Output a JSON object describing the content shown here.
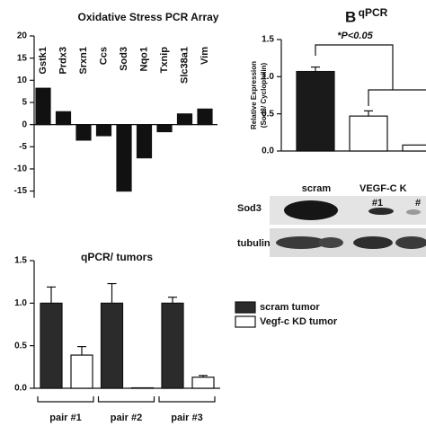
{
  "chart_data": [
    {
      "type": "bar",
      "title": "Oxidative Stress PCR Array",
      "categories": [
        "Gstk1",
        "Prdx3",
        "Srxn1",
        "Ccs",
        "Sod3",
        "Nqo1",
        "Txnip",
        "Slc38a1",
        "Vim"
      ],
      "values": [
        8.2,
        2.9,
        -3.5,
        -2.5,
        -15,
        -7.5,
        -1.6,
        2.4,
        3.5
      ],
      "color": "#111111",
      "ylim": [
        -16.5,
        20
      ],
      "yticks": [
        20,
        15,
        10,
        5,
        0,
        -5,
        -10,
        -15
      ]
    },
    {
      "type": "bar",
      "title": "qPCR",
      "panel_label": "B",
      "ylabel": [
        "Relative Expression",
        "(Sod3/ Cyclophilin)"
      ],
      "annotation": "*P<0.05",
      "values": [
        1.07,
        0.47,
        0.08
      ],
      "errors": [
        0.06,
        0.07,
        null
      ],
      "colors": [
        "#1a1a1a",
        "#ffffff",
        "#ffffff"
      ],
      "ylim": [
        0,
        1.5
      ],
      "yticks": [
        {
          "value": 0,
          "label": "0.0"
        },
        0.5,
        {
          "value": 1,
          "label": "1.0"
        },
        1.5
      ]
    },
    {
      "type": "bar",
      "title": "qPCR/ tumors",
      "categories": [
        "pair #1",
        "pair #2",
        "pair #3"
      ],
      "series": [
        {
          "name": "scram tumor",
          "color": "#2b2b2b",
          "values": [
            1.0,
            1.0,
            1.0
          ],
          "errors": [
            0.19,
            0.23,
            0.07
          ]
        },
        {
          "name": "Vegf-c KD tumor",
          "color": "#ffffff",
          "values": [
            0.39,
            0.005,
            0.13
          ],
          "errors": [
            0.1,
            null,
            0.02
          ]
        }
      ],
      "ylim": [
        0,
        1.5
      ],
      "yticks": [
        {
          "value": 0,
          "label": "0.0"
        },
        0.5,
        {
          "value": 1,
          "label": "1.0"
        },
        1.5
      ]
    }
  ],
  "blot": {
    "lane_labels": [
      "scram",
      "VEGF-C K",
      "#1",
      "#"
    ],
    "row_labels": [
      "Sod3",
      "tubulin"
    ]
  }
}
